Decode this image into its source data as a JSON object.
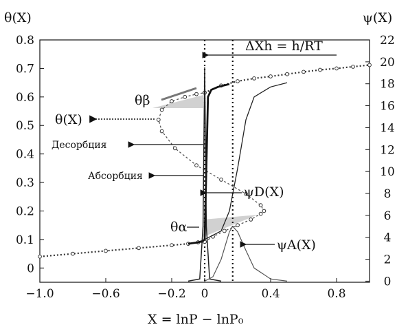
{
  "chart_data": {
    "type": "line",
    "title": "",
    "xlabel": "X = lnP − lnP₀",
    "ylabel_left": "θ(X)",
    "ylabel_right": "ψ(X)",
    "xlim": [
      -1.0,
      1.0
    ],
    "ylim_left": [
      -0.05,
      0.8
    ],
    "ylim_right": [
      -0.1,
      22
    ],
    "x_ticks": [
      "−1.0",
      "−0.6",
      "−0.2",
      "0",
      "0.4",
      "0.8"
    ],
    "x_tick_values": [
      -1.0,
      -0.6,
      -0.2,
      0,
      0.4,
      0.8
    ],
    "y_left_ticks": [
      "0",
      "0.1",
      "0.2",
      "0.3",
      "0.4",
      "0.5",
      "0.6",
      "0.7",
      "0.8"
    ],
    "y_left_tick_values": [
      0,
      0.1,
      0.2,
      0.3,
      0.4,
      0.5,
      0.6,
      0.7,
      0.8
    ],
    "y_right_ticks": [
      "0",
      "2",
      "4",
      "6",
      "8",
      "10",
      "12",
      "14",
      "16",
      "18",
      "20",
      "22"
    ],
    "y_right_tick_values": [
      0,
      2,
      4,
      6,
      8,
      10,
      12,
      14,
      16,
      18,
      20,
      22
    ],
    "dashed_vlines": [
      0.0,
      0.17
    ],
    "series": [
      {
        "style": "dotted-marker",
        "axis": "left",
        "x": [
          -1.0,
          -0.8,
          -0.6,
          -0.4,
          -0.2,
          -0.1,
          -0.04,
          0.0
        ],
        "y": [
          0.04,
          0.05,
          0.06,
          0.07,
          0.08,
          0.085,
          0.09,
          0.092
        ]
      },
      {
        "style": "dotted-marker",
        "axis": "left",
        "x": [
          0.0,
          0.1,
          0.2,
          0.3,
          0.4,
          0.5,
          0.6,
          0.7,
          0.8,
          0.9,
          1.0
        ],
        "y": [
          0.615,
          0.64,
          0.655,
          0.665,
          0.672,
          0.68,
          0.688,
          0.695,
          0.7,
          0.706,
          0.712
        ]
      },
      {
        "style": "dashed",
        "axis": "left",
        "x": [
          0.0,
          0.05,
          0.12,
          0.2,
          0.28,
          0.34,
          0.36,
          0.34,
          0.25,
          0.1,
          -0.05,
          -0.18,
          -0.26,
          -0.28,
          -0.26,
          -0.2,
          -0.12,
          -0.05,
          0.0
        ],
        "y": [
          0.092,
          0.11,
          0.13,
          0.15,
          0.17,
          0.19,
          0.2,
          0.22,
          0.26,
          0.31,
          0.36,
          0.42,
          0.48,
          0.52,
          0.555,
          0.585,
          0.6,
          0.61,
          0.615
        ]
      },
      {
        "style": "solid-bold",
        "axis": "left",
        "x": [
          -0.1,
          -0.04,
          -0.01,
          0.0,
          0.01,
          0.02,
          0.04,
          0.08,
          0.15
        ],
        "y": [
          0.085,
          0.09,
          0.095,
          0.1,
          0.35,
          0.6,
          0.625,
          0.635,
          0.645
        ]
      },
      {
        "style": "solid",
        "axis": "left",
        "x": [
          0.0,
          0.1,
          0.15,
          0.2,
          0.25,
          0.3,
          0.4,
          0.5
        ],
        "y": [
          0.1,
          0.13,
          0.2,
          0.35,
          0.52,
          0.6,
          0.635,
          0.65
        ]
      },
      {
        "style": "peak",
        "axis": "right",
        "x": [
          -0.1,
          -0.03,
          -0.01,
          0.0,
          0.01,
          0.03,
          0.1
        ],
        "y": [
          0.0,
          0.2,
          5.0,
          19.5,
          5.0,
          0.2,
          0.0
        ]
      },
      {
        "style": "peak-thin",
        "axis": "right",
        "x": [
          0.0,
          0.05,
          0.1,
          0.15,
          0.17,
          0.2,
          0.25,
          0.3,
          0.4,
          0.5
        ],
        "y": [
          0.0,
          0.4,
          2.0,
          4.5,
          5.0,
          4.5,
          2.8,
          1.2,
          0.2,
          0.0
        ]
      }
    ],
    "annotations": [
      {
        "text": "θ(X)",
        "at": [
          -0.57,
          0.51
        ],
        "points_to": [
          -0.28,
          0.51
        ]
      },
      {
        "text": "θβ",
        "at": [
          -0.4,
          0.6
        ],
        "points_to": [
          0.0,
          0.6
        ]
      },
      {
        "text": "θα",
        "at": [
          -0.17,
          0.17
        ],
        "points_to": [
          0.0,
          0.17
        ]
      },
      {
        "text": "Десорбция",
        "at": [
          -0.75,
          0.455
        ],
        "points_to": [
          0.0,
          0.455
        ]
      },
      {
        "text": "Абсорбция",
        "at": [
          -0.55,
          0.32
        ],
        "points_to": [
          0.0,
          0.32
        ]
      },
      {
        "text": "ψD(X)",
        "at": [
          0.3,
          0.265
        ],
        "points_to": [
          0.06,
          0.265
        ]
      },
      {
        "text": "ψA(X)",
        "at": [
          0.45,
          0.11
        ],
        "points_to": [
          0.3,
          0.11
        ]
      },
      {
        "text": "ΔXh = h/RT",
        "at": [
          0.32,
          0.75
        ],
        "points_to": [
          0.0,
          0.73
        ]
      }
    ]
  },
  "labels": {
    "y_left_axis": "θ(X)",
    "y_right_axis": "ψ(X)",
    "x_axis": "X = lnP − lnP₀",
    "delta_label": "ΔXh = h/RT",
    "theta_beta": "θβ",
    "theta_alpha": "θα",
    "theta_x": "θ(X)",
    "desorption": "Десорбция",
    "absorption": "Абсорбция",
    "psi_d": "ψD(X)",
    "psi_a": "ψA(X)"
  }
}
